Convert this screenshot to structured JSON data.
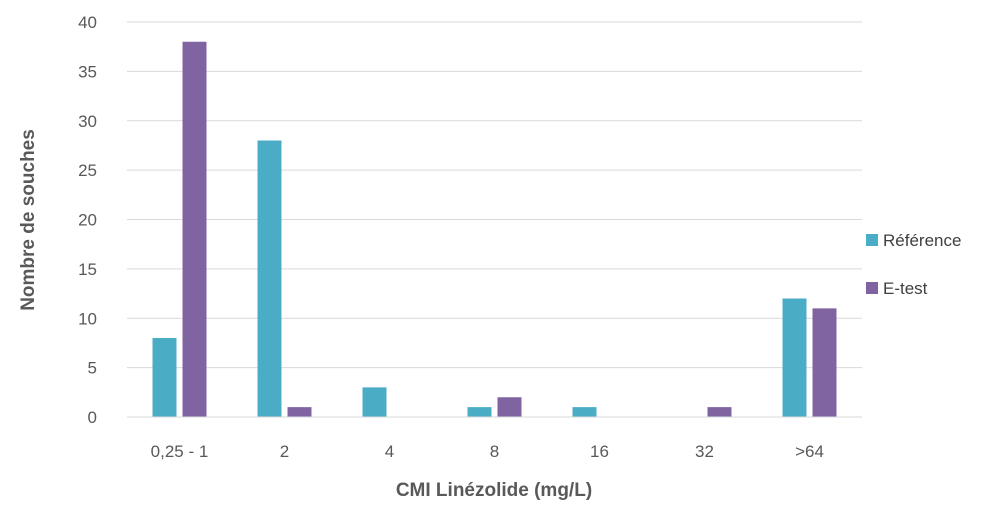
{
  "chart_data": {
    "type": "bar",
    "title": "",
    "xlabel": "CMI Linézolide (mg/L)",
    "ylabel": "Nombre de souches",
    "categories": [
      "0,25 - 1",
      "2",
      "4",
      "8",
      "16",
      "32",
      ">64"
    ],
    "ylim": [
      0,
      40
    ],
    "yticks": [
      0,
      5,
      10,
      15,
      20,
      25,
      30,
      35,
      40
    ],
    "grid": true,
    "legend_position": "right",
    "series": [
      {
        "name": "Référence",
        "color": "#4BACC6",
        "values": [
          8,
          28,
          3,
          1,
          1,
          0,
          12
        ]
      },
      {
        "name": "E-test",
        "color": "#8064A2",
        "values": [
          38,
          1,
          0,
          2,
          0,
          1,
          11
        ]
      }
    ]
  }
}
